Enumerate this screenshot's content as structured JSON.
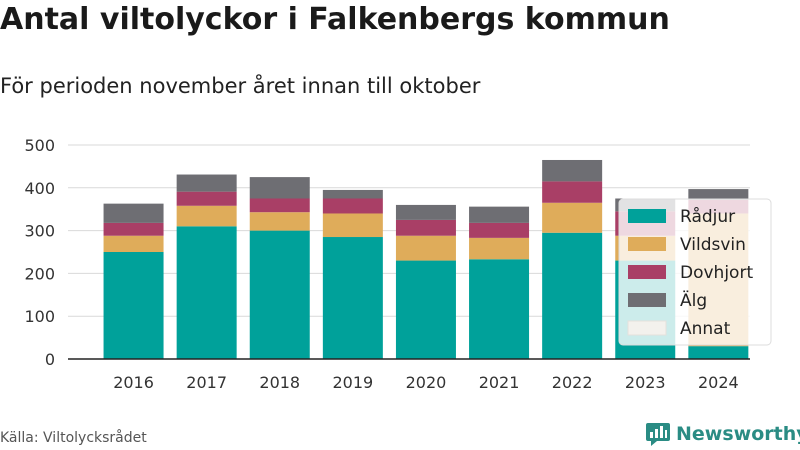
{
  "title": "Antal viltolyckor i Falkenbergs kommun",
  "subtitle": "För perioden november året innan till oktober",
  "source": "Källa: Viltolycksrådet",
  "brand": {
    "name": "Newsworthy",
    "icon": "newsworthy-logo-icon",
    "color": "#2a8c84"
  },
  "chart_data": {
    "type": "bar",
    "stacked": true,
    "categories": [
      "2016",
      "2017",
      "2018",
      "2019",
      "2020",
      "2021",
      "2022",
      "2023",
      "2024"
    ],
    "ylim": [
      0,
      500
    ],
    "yticks": [
      0,
      100,
      200,
      300,
      400,
      500
    ],
    "grid": true,
    "legend_position": "right",
    "series": [
      {
        "name": "Rådjur",
        "color": "#00a19a",
        "values": [
          250,
          310,
          300,
          285,
          230,
          233,
          295,
          230,
          30
        ]
      },
      {
        "name": "Vildsvin",
        "color": "#dfac5a",
        "values": [
          38,
          48,
          43,
          55,
          58,
          50,
          70,
          58,
          310
        ]
      },
      {
        "name": "Dovhjort",
        "color": "#a93f66",
        "values": [
          30,
          33,
          32,
          35,
          37,
          35,
          50,
          57,
          32
        ]
      },
      {
        "name": "Älg",
        "color": "#6e6e73",
        "values": [
          45,
          40,
          50,
          20,
          35,
          38,
          50,
          30,
          25
        ]
      },
      {
        "name": "Annat",
        "color": "#f3f1ed",
        "values": [
          0,
          0,
          0,
          0,
          0,
          0,
          0,
          0,
          0
        ]
      }
    ]
  }
}
